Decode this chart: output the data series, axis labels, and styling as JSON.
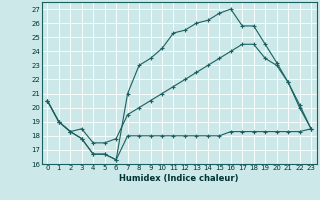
{
  "xlabel": "Humidex (Indice chaleur)",
  "bg_color": "#cce8e8",
  "line_color": "#1a6060",
  "grid_color": "#ffffff",
  "xlim": [
    -0.5,
    23.5
  ],
  "ylim": [
    16,
    27.5
  ],
  "xticks": [
    0,
    1,
    2,
    3,
    4,
    5,
    6,
    7,
    8,
    9,
    10,
    11,
    12,
    13,
    14,
    15,
    16,
    17,
    18,
    19,
    20,
    21,
    22,
    23
  ],
  "yticks": [
    16,
    17,
    18,
    19,
    20,
    21,
    22,
    23,
    24,
    25,
    26,
    27
  ],
  "line_min_x": [
    0,
    1,
    2,
    3,
    4,
    5,
    6,
    7,
    8,
    9,
    10,
    11,
    12,
    13,
    14,
    15,
    16,
    17,
    18,
    19,
    20,
    21,
    22,
    23
  ],
  "line_min_y": [
    20.5,
    19,
    18.3,
    17.8,
    16.7,
    16.7,
    16.3,
    18,
    18,
    18,
    18,
    18,
    18,
    18,
    18,
    18,
    18.3,
    18.3,
    18.3,
    18.3,
    18.3,
    18.3,
    18.3,
    18.5
  ],
  "line_mean_x": [
    0,
    1,
    2,
    3,
    4,
    5,
    6,
    7,
    8,
    9,
    10,
    11,
    12,
    13,
    14,
    15,
    16,
    17,
    18,
    19,
    20,
    21,
    22,
    23
  ],
  "line_mean_y": [
    20.5,
    19,
    18.3,
    18.5,
    17.5,
    17.5,
    17.8,
    19.5,
    20.0,
    20.5,
    21.0,
    21.5,
    22.0,
    22.5,
    23.0,
    23.5,
    24.0,
    24.5,
    24.5,
    23.5,
    23.0,
    21.8,
    20.2,
    18.5
  ],
  "line_max_x": [
    0,
    1,
    2,
    3,
    4,
    5,
    6,
    7,
    8,
    9,
    10,
    11,
    12,
    13,
    14,
    15,
    16,
    17,
    18,
    19,
    20,
    21,
    22,
    23
  ],
  "line_max_y": [
    20.5,
    19,
    18.3,
    17.8,
    16.7,
    16.7,
    16.3,
    21.0,
    23.0,
    23.5,
    24.2,
    25.3,
    25.5,
    26.0,
    26.2,
    26.7,
    27.0,
    25.8,
    25.8,
    24.5,
    23.2,
    21.8,
    20.0,
    18.5
  ]
}
